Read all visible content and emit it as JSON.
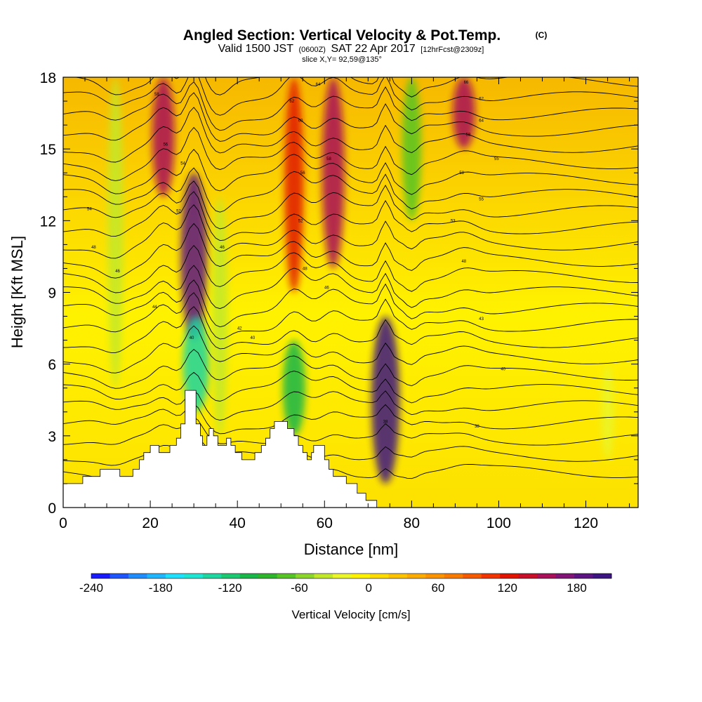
{
  "chart_data": {
    "type": "heatmap",
    "title": "Angled Section: Vertical Velocity & Pot.Temp.",
    "title_unit": "(C)",
    "subtitle": {
      "valid": "Valid 1500 JST",
      "zulu": "(0600Z)",
      "date": "SAT 22 Apr 2017",
      "forecast": "[12hrFcst@2309z]"
    },
    "slice_label": "slice X,Y= 92,59@135°",
    "xlabel": "Distance [nm]",
    "ylabel": "Height [Kft MSL]",
    "xlim": [
      0,
      132
    ],
    "ylim": [
      0,
      18
    ],
    "x_ticks": [
      0,
      20,
      40,
      60,
      80,
      100,
      120
    ],
    "y_ticks": [
      0,
      3,
      6,
      9,
      12,
      15,
      18
    ],
    "colorbar": {
      "label": "Vertical Velocity [cm/s]",
      "range": [
        -240,
        210
      ],
      "step": 15,
      "tick_values": [
        -240,
        -180,
        -120,
        -60,
        0,
        60,
        120,
        180
      ],
      "colors": [
        "#1a1aff",
        "#1f55ff",
        "#1f8cff",
        "#1fb6ff",
        "#1fe0ff",
        "#1fe6d2",
        "#1ed6a0",
        "#1cc872",
        "#19b649",
        "#2eb52c",
        "#55c424",
        "#8cd52a",
        "#c2e82a",
        "#eaf52a",
        "#fff200",
        "#fedc00",
        "#fdc200",
        "#fcab00",
        "#fb9200",
        "#f97a00",
        "#f65a00",
        "#f23400",
        "#e01400",
        "#c80f2a",
        "#a81059",
        "#821478",
        "#5c1482",
        "#3c1582"
      ]
    },
    "velocity_features": [
      {
        "x": 12,
        "zmin": 5,
        "zmax": 18,
        "w": -60
      },
      {
        "x": 23,
        "zmin": 13,
        "zmax": 18,
        "w": 120
      },
      {
        "x": 30,
        "zmin": 7,
        "zmax": 14,
        "w": 150
      },
      {
        "x": 30.5,
        "zmin": 4,
        "zmax": 8,
        "w": -150
      },
      {
        "x": 36,
        "zmin": 3,
        "zmax": 13,
        "w": -60
      },
      {
        "x": 53,
        "zmin": 3,
        "zmax": 7,
        "w": -120
      },
      {
        "x": 53,
        "zmin": 9,
        "zmax": 18,
        "w": 90
      },
      {
        "x": 62,
        "zmin": 10,
        "zmax": 18,
        "w": 120
      },
      {
        "x": 74,
        "zmin": 1,
        "zmax": 8,
        "w": 180
      },
      {
        "x": 80,
        "zmin": 12,
        "zmax": 18,
        "w": -90
      },
      {
        "x": 92,
        "zmin": 15,
        "zmax": 18,
        "w": 120
      },
      {
        "x": 125,
        "zmin": 2,
        "zmax": 6,
        "w": -40
      }
    ],
    "terrain_kft": [
      [
        0,
        1
      ],
      [
        4.5,
        1
      ],
      [
        4.5,
        1.3
      ],
      [
        8.5,
        1.3
      ],
      [
        8.5,
        1.6
      ],
      [
        13,
        1.6
      ],
      [
        13,
        1.3
      ],
      [
        16,
        1.3
      ],
      [
        16,
        1.6
      ],
      [
        17.5,
        1.6
      ],
      [
        17.5,
        2
      ],
      [
        18.5,
        2
      ],
      [
        18.5,
        2.3
      ],
      [
        20,
        2.3
      ],
      [
        20,
        2.6
      ],
      [
        22,
        2.6
      ],
      [
        22,
        2.3
      ],
      [
        24.5,
        2.3
      ],
      [
        24.5,
        2.6
      ],
      [
        26,
        2.6
      ],
      [
        26,
        2.9
      ],
      [
        27,
        2.9
      ],
      [
        27,
        3.5
      ],
      [
        28,
        3.5
      ],
      [
        28,
        4.9
      ],
      [
        30.5,
        4.9
      ],
      [
        30.5,
        3.5
      ],
      [
        31.5,
        3.5
      ],
      [
        31.5,
        3
      ],
      [
        32,
        3
      ],
      [
        32,
        2.6
      ],
      [
        33,
        2.6
      ],
      [
        33,
        3
      ],
      [
        33.5,
        3
      ],
      [
        33.5,
        3.3
      ],
      [
        34.5,
        3.3
      ],
      [
        34.5,
        3
      ],
      [
        35.5,
        3
      ],
      [
        35.5,
        2.6
      ],
      [
        37.5,
        2.6
      ],
      [
        37.5,
        2.9
      ],
      [
        38.5,
        2.9
      ],
      [
        38.5,
        2.6
      ],
      [
        39.5,
        2.6
      ],
      [
        39.5,
        2.3
      ],
      [
        41,
        2.3
      ],
      [
        41,
        2
      ],
      [
        44,
        2
      ],
      [
        44,
        2.3
      ],
      [
        45.5,
        2.3
      ],
      [
        45.5,
        2.6
      ],
      [
        46.5,
        2.6
      ],
      [
        46.5,
        2.9
      ],
      [
        47.5,
        2.9
      ],
      [
        47.5,
        3.3
      ],
      [
        48.5,
        3.3
      ],
      [
        48.5,
        3.6
      ],
      [
        51.5,
        3.6
      ],
      [
        51.5,
        3.3
      ],
      [
        53,
        3.3
      ],
      [
        53,
        3
      ],
      [
        54,
        3
      ],
      [
        54,
        2.6
      ],
      [
        55,
        2.6
      ],
      [
        55,
        2.3
      ],
      [
        56,
        2.3
      ],
      [
        56,
        2
      ],
      [
        57,
        2
      ],
      [
        57,
        2.3
      ],
      [
        57.5,
        2.3
      ],
      [
        57.5,
        2.6
      ],
      [
        60,
        2.6
      ],
      [
        60,
        2
      ],
      [
        61,
        2
      ],
      [
        61,
        1.6
      ],
      [
        62,
        1.6
      ],
      [
        62,
        1.3
      ],
      [
        65,
        1.3
      ],
      [
        65,
        1
      ],
      [
        67.5,
        1
      ],
      [
        67.5,
        0.6
      ],
      [
        69.5,
        0.6
      ],
      [
        69.5,
        0.3
      ],
      [
        72,
        0.3
      ],
      [
        72,
        0
      ],
      [
        132,
        0
      ]
    ],
    "theta_labels": [
      {
        "x": 6,
        "z": 12.5,
        "text": "54"
      },
      {
        "x": 7,
        "z": 10.9,
        "text": "48"
      },
      {
        "x": 12.5,
        "z": 9.9,
        "text": "46"
      },
      {
        "x": 21.5,
        "z": 17.3,
        "text": "58"
      },
      {
        "x": 23.5,
        "z": 15.2,
        "text": "56"
      },
      {
        "x": 27.5,
        "z": 14.4,
        "text": "54"
      },
      {
        "x": 26.5,
        "z": 12.4,
        "text": "52"
      },
      {
        "x": 21,
        "z": 8.4,
        "text": "44"
      },
      {
        "x": 29.5,
        "z": 7.1,
        "text": "40"
      },
      {
        "x": 36.5,
        "z": 10.9,
        "text": "46"
      },
      {
        "x": 40.5,
        "z": 7.5,
        "text": "42"
      },
      {
        "x": 43.5,
        "z": 7.1,
        "text": "40"
      },
      {
        "x": 58.5,
        "z": 17.7,
        "text": "64"
      },
      {
        "x": 52.5,
        "z": 17,
        "text": "62"
      },
      {
        "x": 54.5,
        "z": 16.2,
        "text": "60"
      },
      {
        "x": 55,
        "z": 14,
        "text": "56"
      },
      {
        "x": 61,
        "z": 14.6,
        "text": "58"
      },
      {
        "x": 54.5,
        "z": 12,
        "text": "52"
      },
      {
        "x": 55.5,
        "z": 10,
        "text": "48"
      },
      {
        "x": 60.5,
        "z": 9.2,
        "text": "46"
      },
      {
        "x": 74,
        "z": 3.6,
        "text": "38"
      },
      {
        "x": 92.5,
        "z": 17.8,
        "text": "66"
      },
      {
        "x": 96,
        "z": 17.1,
        "text": "62"
      },
      {
        "x": 96,
        "z": 16.2,
        "text": "64"
      },
      {
        "x": 93,
        "z": 15.6,
        "text": "58"
      },
      {
        "x": 99.5,
        "z": 14.6,
        "text": "55"
      },
      {
        "x": 91.5,
        "z": 14,
        "text": "58"
      },
      {
        "x": 96,
        "z": 12.9,
        "text": "55"
      },
      {
        "x": 89.5,
        "z": 12,
        "text": "53"
      },
      {
        "x": 92,
        "z": 10.3,
        "text": "48"
      },
      {
        "x": 96,
        "z": 7.9,
        "text": "43"
      },
      {
        "x": 101,
        "z": 5.8,
        "text": "40"
      },
      {
        "x": 95,
        "z": 3.4,
        "text": "38"
      }
    ]
  }
}
